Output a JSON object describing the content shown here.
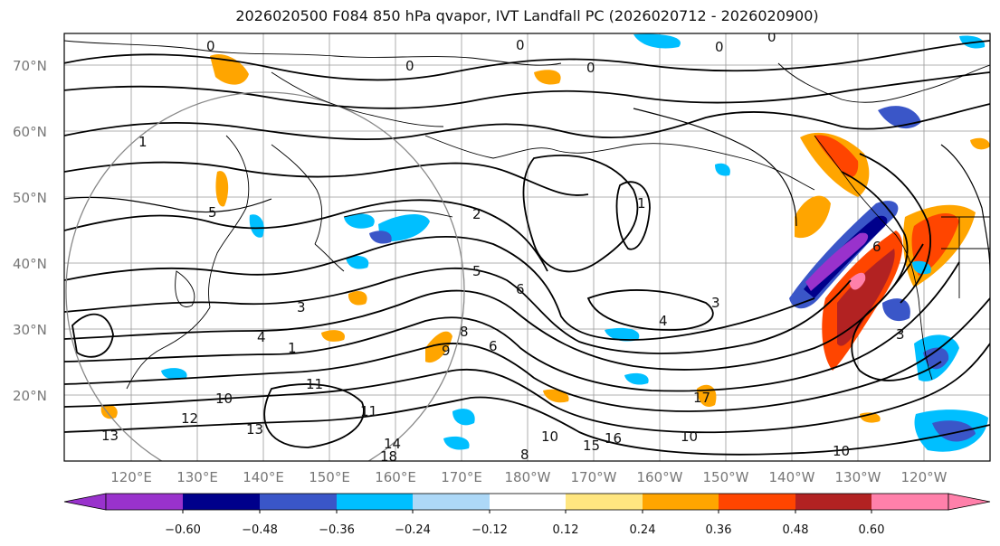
{
  "title": "2026020500 F084 850 hPa qvapor, IVT Landfall PC (2026020712 - 2026020900)",
  "map": {
    "lat_labels": [
      "70°N",
      "60°N",
      "50°N",
      "40°N",
      "30°N",
      "20°N"
    ],
    "lon_labels": [
      "120°E",
      "130°E",
      "140°E",
      "150°E",
      "160°E",
      "170°E",
      "180°W",
      "170°W",
      "160°W",
      "150°W",
      "140°W",
      "130°W",
      "120°W"
    ],
    "contour_labels": [
      "0",
      "0",
      "0",
      "0",
      "0",
      "0",
      "1",
      "1",
      "1",
      "2",
      "3",
      "3",
      "3",
      "4",
      "4",
      "5",
      "5",
      "6",
      "6",
      "6",
      "8",
      "8",
      "9",
      "10",
      "10",
      "10",
      "10",
      "11",
      "11",
      "12",
      "13",
      "13",
      "14",
      "15",
      "16",
      "17",
      "18"
    ]
  },
  "colorbar": {
    "tick_labels": [
      "−0.60",
      "−0.48",
      "−0.36",
      "−0.24",
      "−0.12",
      "0.12",
      "0.24",
      "0.36",
      "0.48",
      "0.60"
    ],
    "colors": [
      "#9932cc",
      "#00008b",
      "#3a56c8",
      "#00bfff",
      "#add8f7",
      "#ffffff",
      "#ffe680",
      "#ffa500",
      "#ff4500",
      "#b22222",
      "#ff80aa"
    ]
  }
}
